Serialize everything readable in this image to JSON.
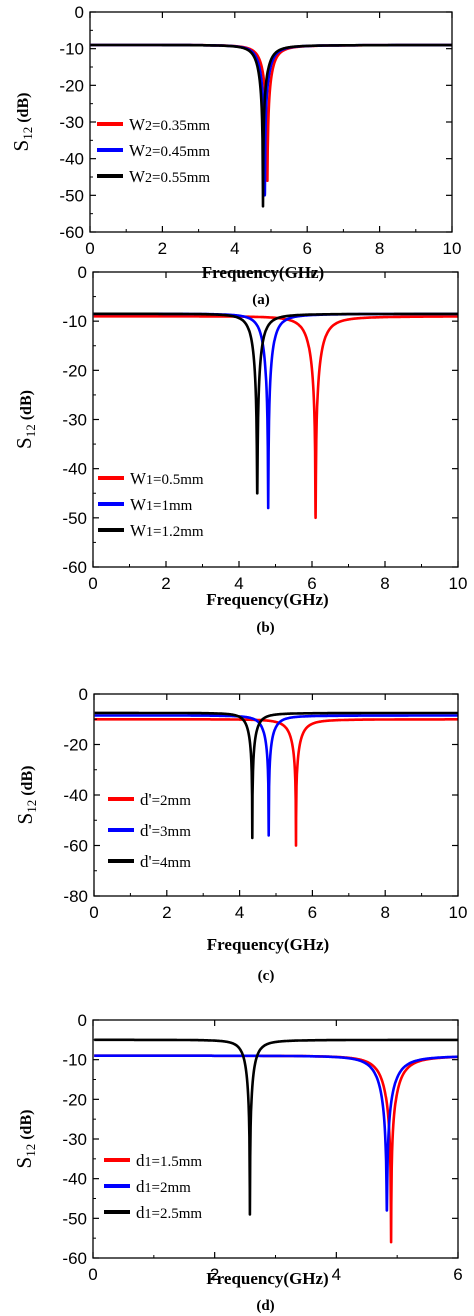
{
  "chart_data": [
    {
      "type": "line",
      "caption": "(a)",
      "xlabel": "Frequency(GHz)",
      "ylabel_main": "S",
      "ylabel_sub": "12",
      "ylabel_unit": "(dB)",
      "xlim": [
        0,
        10
      ],
      "ylim": [
        -60,
        0
      ],
      "xticks": [
        0,
        2,
        4,
        6,
        8,
        10
      ],
      "yticks": [
        0,
        -10,
        -20,
        -30,
        -40,
        -50,
        -60
      ],
      "grid": false,
      "legend_position": "bottom-left",
      "series": [
        {
          "name": "W2=0.35mm",
          "label_main": "W",
          "label_sub": "2",
          "label_rest": "=0.35mm",
          "color": "#ff0000",
          "f0": 4.9,
          "min": -46,
          "plateau": -9
        },
        {
          "name": "W2=0.45mm",
          "label_main": "W",
          "label_sub": "2",
          "label_rest": "=0.45mm",
          "color": "#0000ff",
          "f0": 4.83,
          "min": -50,
          "plateau": -9
        },
        {
          "name": "W2=0.55mm",
          "label_main": "W",
          "label_sub": "2",
          "label_rest": "=0.55mm",
          "color": "#000000",
          "f0": 4.78,
          "min": -53,
          "plateau": -9
        }
      ]
    },
    {
      "type": "line",
      "caption": "(b)",
      "xlabel": "Frequency(GHz)",
      "ylabel_main": "S",
      "ylabel_sub": "12",
      "ylabel_unit": "(dB)",
      "xlim": [
        0,
        10
      ],
      "ylim": [
        -60,
        0
      ],
      "xticks": [
        0,
        2,
        4,
        6,
        8,
        10
      ],
      "yticks": [
        0,
        -10,
        -20,
        -30,
        -40,
        -50,
        -60
      ],
      "grid": false,
      "legend_position": "bottom-left",
      "series": [
        {
          "name": "W1=0.5mm",
          "label_main": "W",
          "label_sub": "1",
          "label_rest": "=0.5mm",
          "color": "#ff0000",
          "f0": 6.1,
          "min": -50,
          "plateau": -9
        },
        {
          "name": "W1=1mm",
          "label_main": "W",
          "label_sub": "1",
          "label_rest": "=1mm",
          "color": "#0000ff",
          "f0": 4.8,
          "min": -48,
          "plateau": -8.5
        },
        {
          "name": "W1=1.2mm",
          "label_main": "W",
          "label_sub": "1",
          "label_rest": "=1.2mm",
          "color": "#000000",
          "f0": 4.5,
          "min": -45,
          "plateau": -8.5
        }
      ]
    },
    {
      "type": "line",
      "caption": "(c)",
      "xlabel": "Frequency(GHz)",
      "ylabel_main": "S",
      "ylabel_sub": "12",
      "ylabel_unit": "(dB)",
      "xlim": [
        0,
        10
      ],
      "ylim": [
        -80,
        0
      ],
      "xticks": [
        0,
        2,
        4,
        6,
        8,
        10
      ],
      "yticks": [
        0,
        -20,
        -40,
        -60,
        -80
      ],
      "grid": false,
      "legend_position": "bottom-left",
      "series": [
        {
          "name": "d'=2mm",
          "label_main": "d'",
          "label_sub": "",
          "label_rest": "=2mm",
          "color": "#ff0000",
          "f0": 5.55,
          "min": -60,
          "plateau": -10
        },
        {
          "name": "d'=3mm",
          "label_main": "d'",
          "label_sub": "",
          "label_rest": "=3mm",
          "color": "#0000ff",
          "f0": 4.8,
          "min": -56,
          "plateau": -8.5
        },
        {
          "name": "d'=4mm",
          "label_main": "d'",
          "label_sub": "",
          "label_rest": "=4mm",
          "color": "#000000",
          "f0": 4.35,
          "min": -57,
          "plateau": -7.5
        }
      ]
    },
    {
      "type": "line",
      "caption": "(d)",
      "xlabel": "Frequency(GHz)",
      "ylabel_main": "S",
      "ylabel_sub": "12",
      "ylabel_unit": "(dB)",
      "xlim": [
        0,
        6
      ],
      "ylim": [
        -60,
        0
      ],
      "xticks": [
        0,
        2,
        4,
        6
      ],
      "yticks": [
        0,
        -10,
        -20,
        -30,
        -40,
        -50,
        -60
      ],
      "grid": false,
      "legend_position": "bottom-left",
      "series": [
        {
          "name": "d1=1.5mm",
          "label_main": "d",
          "label_sub": "1",
          "label_rest": "=1.5mm",
          "color": "#ff0000",
          "f0": 4.9,
          "min": -56,
          "plateau": -9
        },
        {
          "name": "d1=2mm",
          "label_main": "d",
          "label_sub": "1",
          "label_rest": "=2mm",
          "color": "#0000ff",
          "f0": 4.83,
          "min": -48,
          "plateau": -9
        },
        {
          "name": "d1=2.5mm",
          "label_main": "d",
          "label_sub": "1",
          "label_rest": "=2.5mm",
          "color": "#000000",
          "f0": 2.58,
          "min": -49,
          "plateau": -5
        }
      ]
    }
  ]
}
